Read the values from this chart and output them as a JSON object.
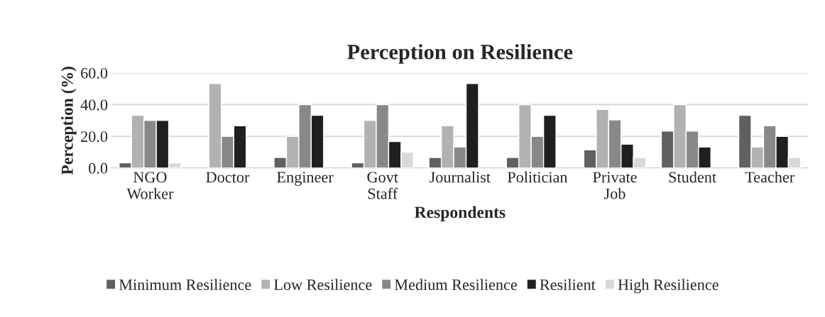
{
  "chart_data": {
    "type": "bar",
    "title": "Perception on Resilience",
    "xlabel": "Respondents",
    "ylabel": "Perception (%)",
    "categories": [
      "NGO\nWorker",
      "Doctor",
      "Engineer",
      "Govt\nStaff",
      "Journalist",
      "Politician",
      "Private\nJob",
      "Student",
      "Teacher"
    ],
    "series": [
      {
        "name": "Minimum Resilience",
        "color": "#606060",
        "values": [
          3.3,
          null,
          6.7,
          3.3,
          6.7,
          6.7,
          11.5,
          23.3,
          33.3
        ]
      },
      {
        "name": "Low Resilience",
        "color": "#b2b2b2",
        "values": [
          33.3,
          53.3,
          20,
          30,
          26.7,
          40,
          37,
          40,
          13.3
        ]
      },
      {
        "name": "Medium Resilience",
        "color": "#888888",
        "values": [
          30,
          20,
          40,
          40,
          13.3,
          20,
          30.4,
          23.3,
          26.7
        ]
      },
      {
        "name": "Resilient",
        "color": "#202020",
        "values": [
          30,
          26.7,
          33.3,
          16.7,
          53.3,
          33.3,
          15,
          13.3,
          20
        ]
      },
      {
        "name": "High Resilience",
        "color": "#d9d9d9",
        "values": [
          3.3,
          null,
          null,
          10,
          null,
          null,
          6.7,
          null,
          6.7
        ]
      }
    ],
    "ylim": [
      0,
      60
    ],
    "yticks": [
      {
        "value": 0,
        "label": "0.0"
      },
      {
        "value": 20,
        "label": "20.0"
      },
      {
        "value": 40,
        "label": "40.0"
      },
      {
        "value": 60,
        "label": "60.0"
      }
    ],
    "grid": "y",
    "legend": "bottom"
  }
}
